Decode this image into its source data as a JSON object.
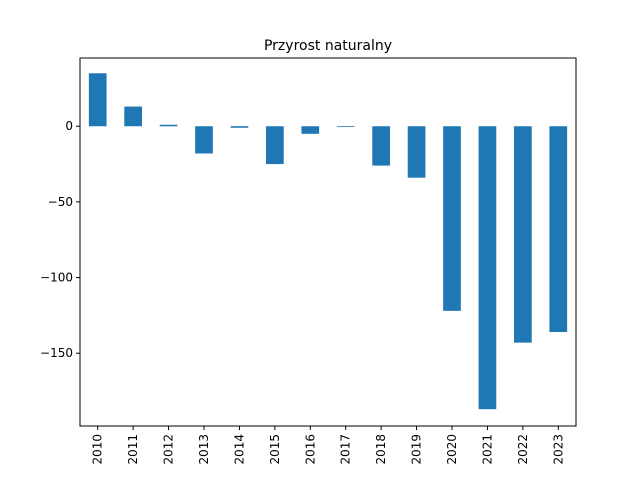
{
  "chart_data": {
    "type": "bar",
    "title": "Przyrost naturalny",
    "xlabel": "",
    "ylabel": "",
    "categories": [
      "2010",
      "2011",
      "2012",
      "2013",
      "2014",
      "2015",
      "2016",
      "2017",
      "2018",
      "2019",
      "2020",
      "2021",
      "2022",
      "2023"
    ],
    "values": [
      35,
      13,
      1,
      -18,
      -1,
      -25,
      -5,
      -0.5,
      -26,
      -34,
      -122,
      -187,
      -143,
      -136
    ],
    "ylim": [
      -198.1,
      45.1
    ],
    "yticks": [
      0,
      -50,
      -100,
      -150
    ],
    "ytick_labels": [
      "0",
      "−50",
      "−100",
      "−150"
    ],
    "bar_color": "#1f77b4",
    "grid": false,
    "legend": "none"
  }
}
